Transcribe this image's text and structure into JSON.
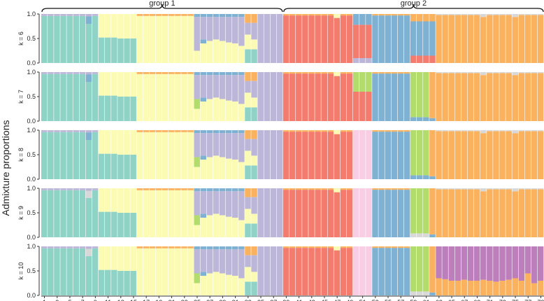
{
  "chart_data": {
    "type": "bar",
    "subtype": "stacked-admixture",
    "ylabel": "Admixture proportions",
    "ylim": [
      0,
      1
    ],
    "yticks": [
      "0.0",
      "0.5",
      "1.0"
    ],
    "n_individuals": 79,
    "xtick_labels": [
      "1",
      "3",
      "5",
      "7",
      "9",
      "11",
      "13",
      "15",
      "17",
      "19",
      "21",
      "23",
      "25",
      "27",
      "29",
      "31",
      "33",
      "35",
      "37",
      "39",
      "41",
      "43",
      "45",
      "47",
      "49",
      "51",
      "53",
      "55",
      "57",
      "59",
      "61",
      "63",
      "65",
      "67",
      "69",
      "71",
      "73",
      "75",
      "77",
      "79"
    ],
    "groups": [
      {
        "label": "group 1",
        "start": 1,
        "end": 38
      },
      {
        "label": "group 2",
        "start": 39,
        "end": 79
      }
    ],
    "colors": {
      "teal": "#8ed3c5",
      "yellow": "#fbfbb3",
      "lavender": "#bcb7d8",
      "red": "#f47c6f",
      "blue": "#7fb1d3",
      "orange": "#fbb25f",
      "green": "#b2dc6c",
      "pink": "#f9cde3",
      "grey": "#d8d8d8",
      "purple": "#bc7fbc"
    },
    "panels": [
      {
        "label": "k = 6",
        "k": 6
      },
      {
        "label": "k = 7",
        "k": 7
      },
      {
        "label": "k = 8",
        "k": 8
      },
      {
        "label": "k = 9",
        "k": 9
      },
      {
        "label": "k = 10",
        "k": 10
      }
    ],
    "series_note": "Each individual's bar is stacked from bottom to top in the listed component order; values are proportions summing to 1."
  }
}
